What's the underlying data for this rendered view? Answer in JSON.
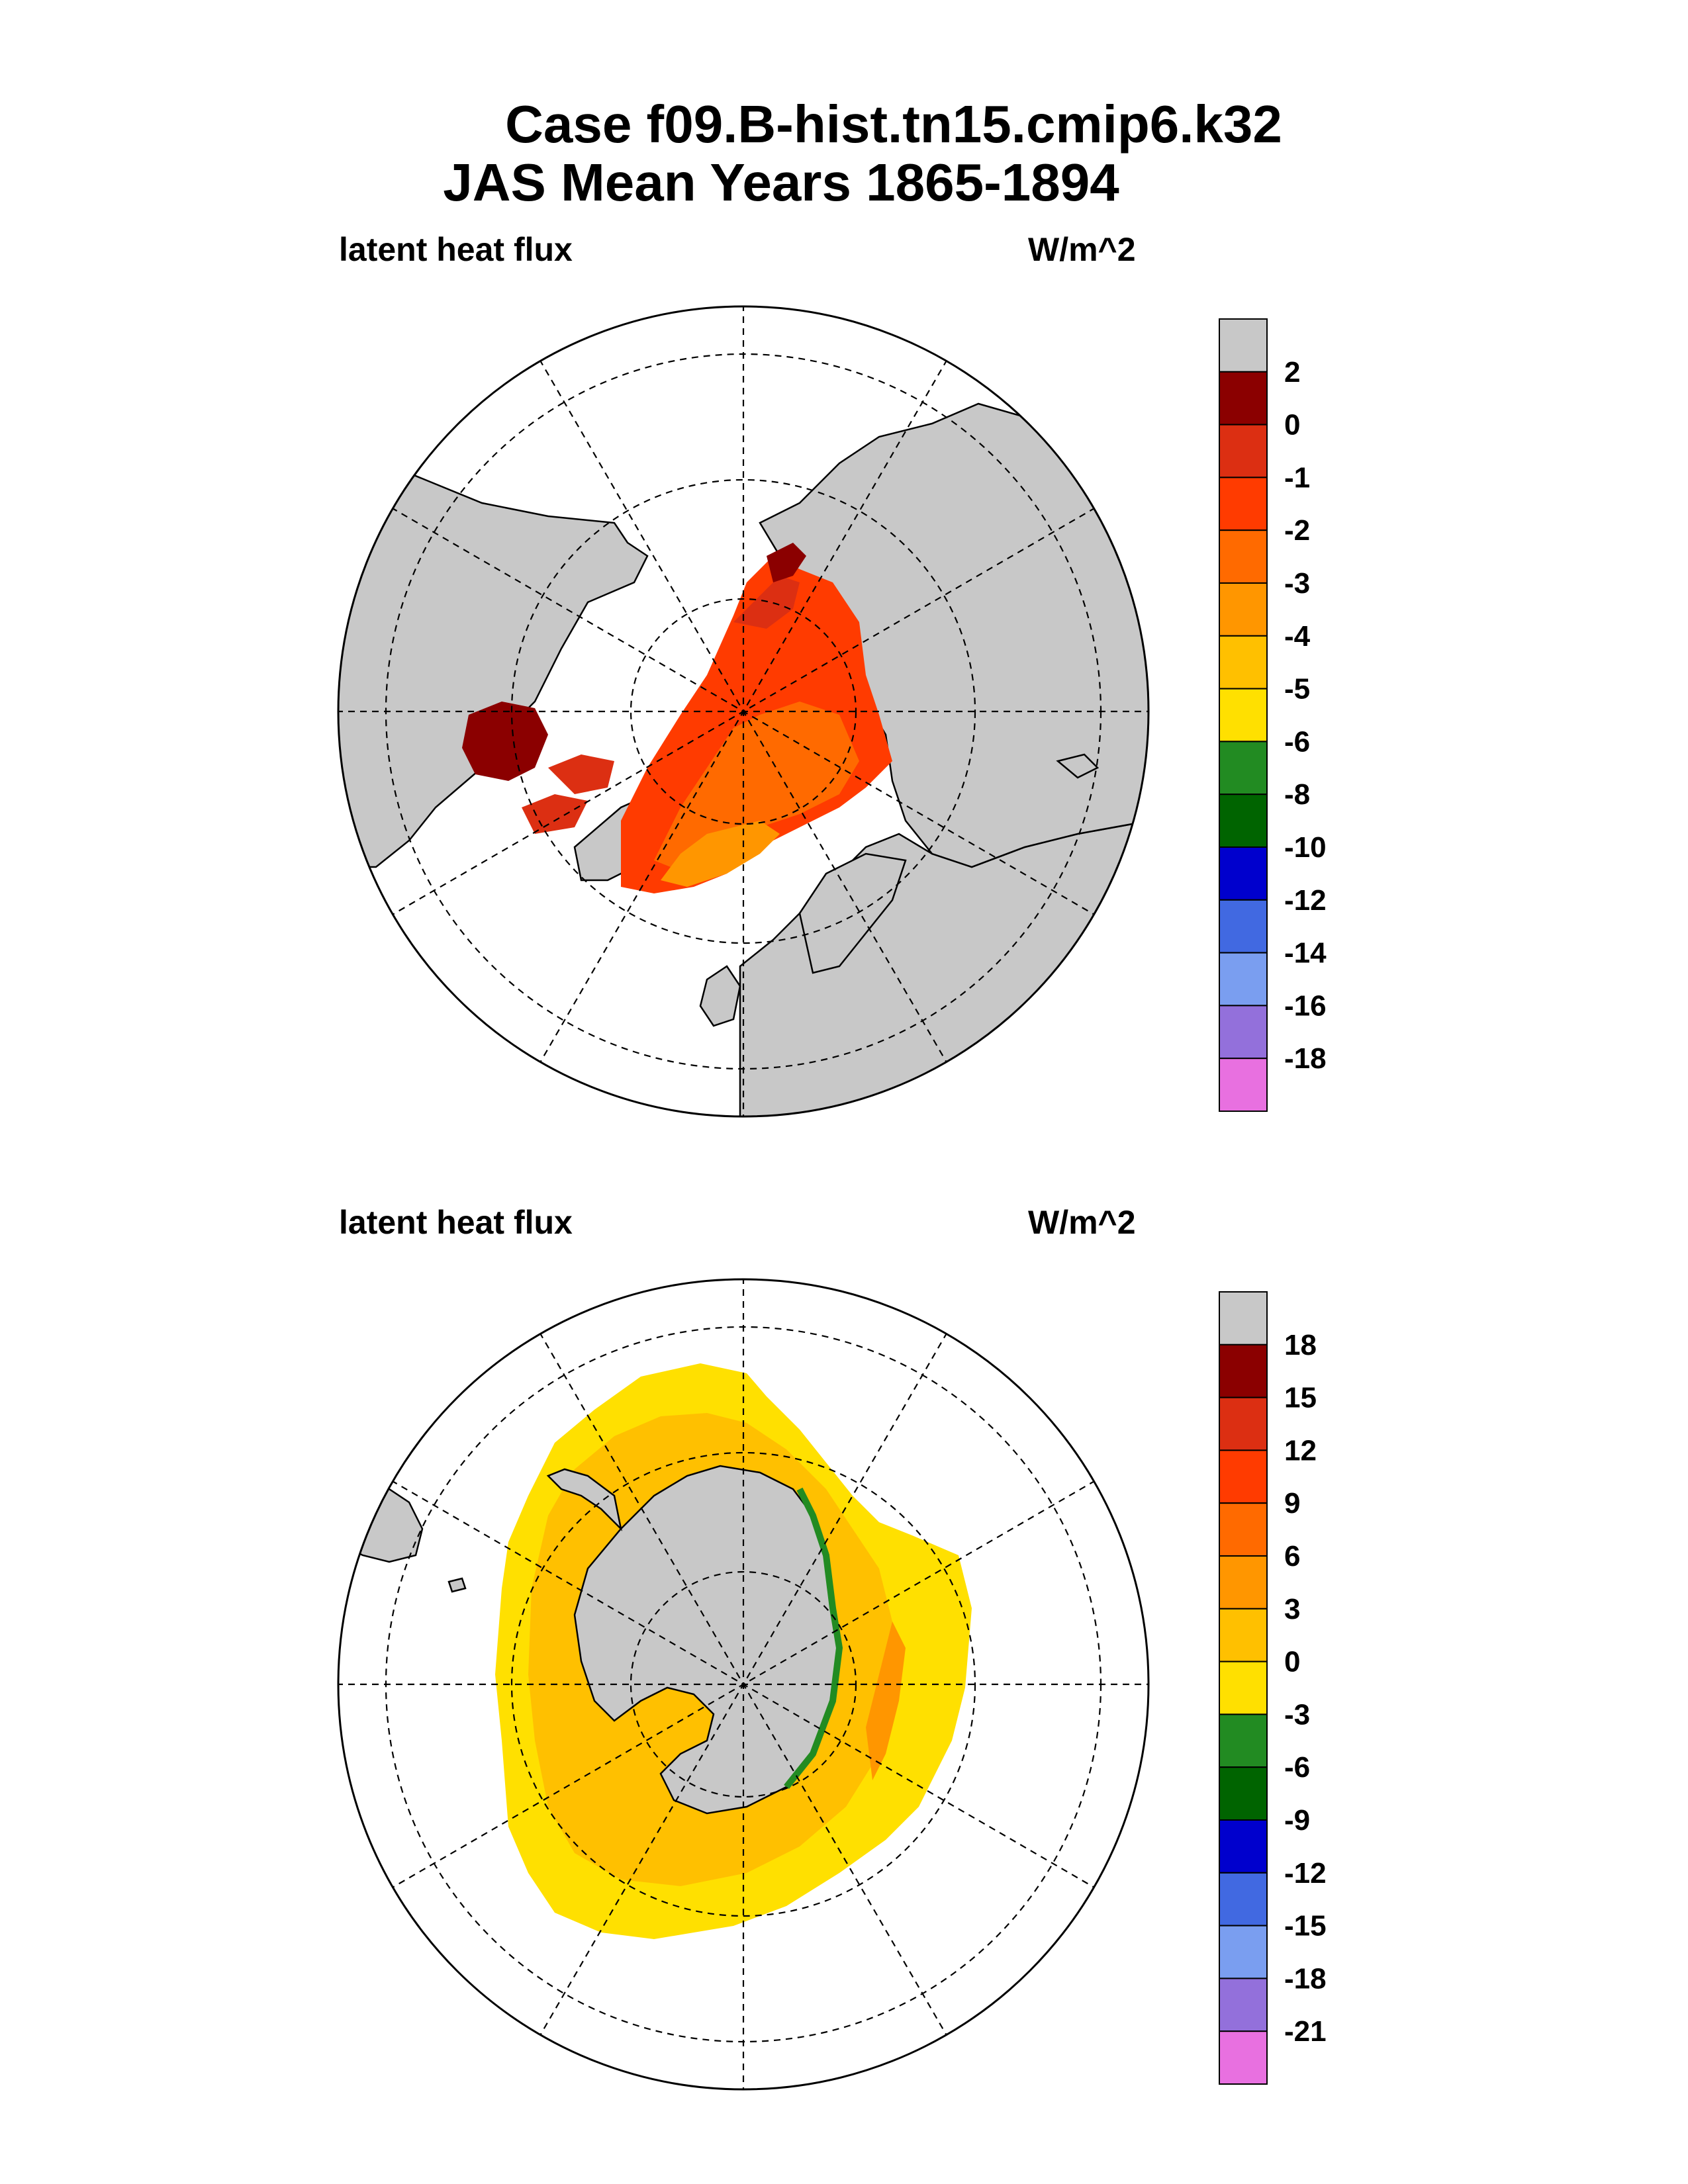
{
  "title": {
    "line1": "Case f09.B-hist.tn15.cmip6.k32",
    "line2": "JAS Mean   Years 1865-1894"
  },
  "panels": [
    {
      "id": "north",
      "variable": "latent heat flux",
      "units": "W/m^2",
      "colorbar": {
        "labels": [
          "2",
          "0",
          "-1",
          "-2",
          "-3",
          "-4",
          "-5",
          "-6",
          "-8",
          "-10",
          "-12",
          "-14",
          "-16",
          "-18"
        ],
        "colors": [
          "#c8c8c8",
          "#8b0000",
          "#dc2f12",
          "#ff3b00",
          "#ff6a00",
          "#ff9600",
          "#ffc000",
          "#ffe000",
          "#228b22",
          "#006400",
          "#0000cd",
          "#4169e1",
          "#7a9ef0",
          "#9370db",
          "#e870e0"
        ]
      }
    },
    {
      "id": "south",
      "variable": "latent heat flux",
      "units": "W/m^2",
      "colorbar": {
        "labels": [
          "18",
          "15",
          "12",
          "9",
          "6",
          "3",
          "0",
          "-3",
          "-6",
          "-9",
          "-12",
          "-15",
          "-18",
          "-21"
        ],
        "colors": [
          "#c8c8c8",
          "#8b0000",
          "#dc2f12",
          "#ff3b00",
          "#ff6a00",
          "#ff9600",
          "#ffc000",
          "#ffe000",
          "#228b22",
          "#006400",
          "#0000cd",
          "#4169e1",
          "#7a9ef0",
          "#9370db",
          "#e870e0"
        ]
      }
    }
  ]
}
